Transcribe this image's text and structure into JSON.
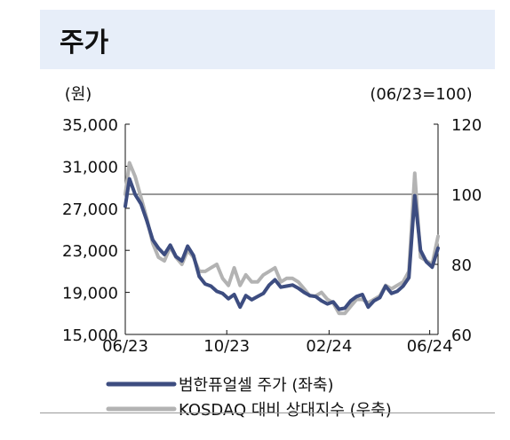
{
  "title": "주가",
  "chart_data": {
    "type": "line",
    "left_unit": "(원)",
    "right_unit": "(06/23=100)",
    "x_ticks": [
      "06/23",
      "10/23",
      "02/24",
      "06/24"
    ],
    "y_left_ticks": [
      "35,000",
      "31,000",
      "27,000",
      "23,000",
      "19,000",
      "15,000"
    ],
    "y_right_ticks": [
      "120",
      "100",
      "80",
      "60"
    ],
    "ylim_left": [
      15000,
      35000
    ],
    "ylim_right": [
      60,
      120
    ],
    "reference_line": 100,
    "grid": false,
    "legend_position": "bottom",
    "series": [
      {
        "name": "범한퓨얼셀 주가 (좌축)",
        "axis": "left",
        "color": "#3d4d80",
        "x": [
          "2023-06-15",
          "2023-06-20",
          "2023-06-27",
          "2023-07-04",
          "2023-07-11",
          "2023-07-18",
          "2023-07-25",
          "2023-08-01",
          "2023-08-08",
          "2023-08-15",
          "2023-08-22",
          "2023-08-29",
          "2023-09-05",
          "2023-09-12",
          "2023-09-19",
          "2023-09-26",
          "2023-10-03",
          "2023-10-10",
          "2023-10-17",
          "2023-10-24",
          "2023-10-31",
          "2023-11-07",
          "2023-11-14",
          "2023-11-21",
          "2023-11-28",
          "2023-12-05",
          "2023-12-12",
          "2023-12-19",
          "2023-12-26",
          "2024-01-02",
          "2024-01-09",
          "2024-01-16",
          "2024-01-23",
          "2024-01-30",
          "2024-02-06",
          "2024-02-13",
          "2024-02-20",
          "2024-02-27",
          "2024-03-05",
          "2024-03-12",
          "2024-03-19",
          "2024-03-26",
          "2024-04-02",
          "2024-04-09",
          "2024-04-16",
          "2024-04-23",
          "2024-04-30",
          "2024-05-07",
          "2024-05-14",
          "2024-05-21",
          "2024-05-28",
          "2024-06-04",
          "2024-06-11",
          "2024-06-18",
          "2024-06-25"
        ],
        "values": [
          27200,
          29800,
          28300,
          27400,
          25800,
          24000,
          23200,
          22600,
          23500,
          22400,
          22000,
          23400,
          22500,
          20500,
          19800,
          19600,
          19100,
          18900,
          18400,
          18800,
          17600,
          18700,
          18300,
          18600,
          18900,
          19700,
          20200,
          19500,
          19600,
          19700,
          19400,
          19000,
          18700,
          18600,
          18200,
          17900,
          18100,
          17400,
          17500,
          18200,
          18600,
          18800,
          17600,
          18200,
          18500,
          19600,
          18900,
          19100,
          19600,
          20400,
          28200,
          23000,
          21900,
          21400,
          23200
        ]
      },
      {
        "name": "KOSDAQ 대비 상대지수 (우축)",
        "axis": "right",
        "color": "#b3b3b3",
        "x": [
          "2023-06-15",
          "2023-06-20",
          "2023-06-27",
          "2023-07-04",
          "2023-07-11",
          "2023-07-18",
          "2023-07-25",
          "2023-08-01",
          "2023-08-08",
          "2023-08-15",
          "2023-08-22",
          "2023-08-29",
          "2023-09-05",
          "2023-09-12",
          "2023-09-19",
          "2023-09-26",
          "2023-10-03",
          "2023-10-10",
          "2023-10-17",
          "2023-10-24",
          "2023-10-31",
          "2023-11-07",
          "2023-11-14",
          "2023-11-21",
          "2023-11-28",
          "2023-12-05",
          "2023-12-12",
          "2023-12-19",
          "2023-12-26",
          "2024-01-02",
          "2024-01-09",
          "2024-01-16",
          "2024-01-23",
          "2024-01-30",
          "2024-02-06",
          "2024-02-13",
          "2024-02-20",
          "2024-02-27",
          "2024-03-05",
          "2024-03-12",
          "2024-03-19",
          "2024-03-26",
          "2024-04-02",
          "2024-04-09",
          "2024-04-16",
          "2024-04-23",
          "2024-04-30",
          "2024-05-07",
          "2024-05-14",
          "2024-05-21",
          "2024-05-28",
          "2024-06-04",
          "2024-06-11",
          "2024-06-18",
          "2024-06-25"
        ],
        "values": [
          100,
          109,
          105,
          99,
          93,
          86,
          82,
          81,
          85,
          82,
          80,
          84,
          82,
          78,
          78,
          79,
          80,
          76,
          74,
          79,
          74,
          77,
          75,
          75,
          77,
          78,
          79,
          75,
          76,
          76,
          75,
          73,
          71,
          71,
          72,
          70,
          69,
          66,
          66,
          68,
          70,
          70,
          69,
          70,
          71,
          74,
          73,
          74,
          75,
          78,
          106,
          82,
          81,
          80,
          88
        ]
      }
    ]
  }
}
